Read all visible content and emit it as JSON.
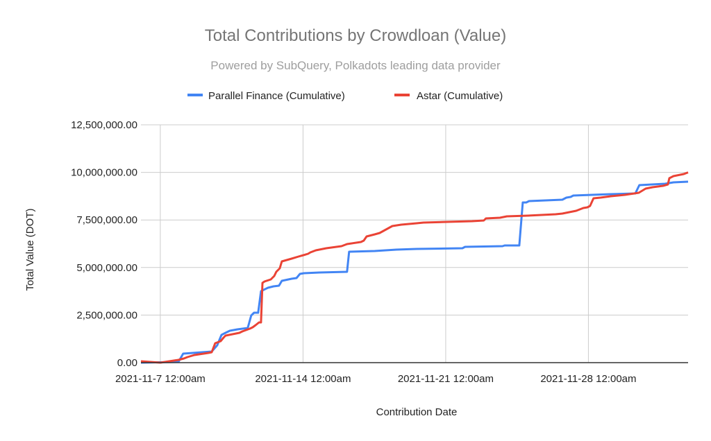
{
  "chart_data": {
    "type": "line",
    "title": "Total Contributions by Crowdloan (Value)",
    "subtitle": "Powered by SubQuery, Polkadots leading data provider",
    "xlabel": "Contribution Date",
    "ylabel": "Total Value (DOT)",
    "x_unit": "days since 2021-11-7 12:00am",
    "xlim": [
      -0.95,
      25.89
    ],
    "ylim": [
      0,
      12500000
    ],
    "grid": true,
    "legend_position": "top",
    "y_ticks": [
      {
        "value": 0,
        "label": "0.00"
      },
      {
        "value": 2500000,
        "label": "2,500,000.00"
      },
      {
        "value": 5000000,
        "label": "5,000,000.00"
      },
      {
        "value": 7500000,
        "label": "7,500,000.00"
      },
      {
        "value": 10000000,
        "label": "10,000,000.00"
      },
      {
        "value": 12500000,
        "label": "12,500,000.00"
      }
    ],
    "x_ticks": [
      {
        "value": 0,
        "label": "2021-11-7 12:00am"
      },
      {
        "value": 7,
        "label": "2021-11-14 12:00am"
      },
      {
        "value": 14,
        "label": "2021-11-21 12:00am"
      },
      {
        "value": 21,
        "label": "2021-11-28 12:00am"
      }
    ],
    "series": [
      {
        "name": "Parallel Finance (Cumulative)",
        "color": "#4285f4",
        "points": [
          [
            -0.95,
            0
          ],
          [
            0.89,
            36000
          ],
          [
            1.12,
            474000
          ],
          [
            2.52,
            583000
          ],
          [
            2.79,
            911000
          ],
          [
            3.0,
            1458000
          ],
          [
            3.2,
            1567000
          ],
          [
            3.41,
            1676000
          ],
          [
            3.78,
            1749000
          ],
          [
            4.29,
            1822000
          ],
          [
            4.46,
            2478000
          ],
          [
            4.6,
            2624000
          ],
          [
            4.8,
            2624000
          ],
          [
            4.94,
            3753000
          ],
          [
            5.07,
            3826000
          ],
          [
            5.28,
            3935000
          ],
          [
            5.55,
            4009000
          ],
          [
            5.82,
            4045000
          ],
          [
            5.96,
            4300000
          ],
          [
            6.44,
            4409000
          ],
          [
            6.68,
            4446000
          ],
          [
            6.85,
            4665000
          ],
          [
            7.05,
            4701000
          ],
          [
            7.8,
            4737000
          ],
          [
            9.16,
            4774000
          ],
          [
            9.26,
            5831000
          ],
          [
            10.52,
            5867000
          ],
          [
            11.58,
            5940000
          ],
          [
            12.57,
            5977000
          ],
          [
            14.82,
            6013000
          ],
          [
            14.95,
            6086000
          ],
          [
            16.79,
            6122000
          ],
          [
            16.89,
            6159000
          ],
          [
            17.61,
            6159000
          ],
          [
            17.78,
            8418000
          ],
          [
            17.95,
            8418000
          ],
          [
            18.09,
            8491000
          ],
          [
            19.72,
            8564000
          ],
          [
            19.92,
            8673000
          ],
          [
            20.13,
            8710000
          ],
          [
            20.26,
            8783000
          ],
          [
            22.1,
            8856000
          ],
          [
            23.3,
            8892000
          ],
          [
            23.5,
            9330000
          ],
          [
            24.76,
            9403000
          ],
          [
            25.17,
            9476000
          ],
          [
            25.89,
            9512000
          ]
        ]
      },
      {
        "name": "Astar (Cumulative)",
        "color": "#ea4335",
        "points": [
          [
            -0.95,
            73000
          ],
          [
            0,
            0
          ],
          [
            0.89,
            146000
          ],
          [
            1.16,
            219000
          ],
          [
            1.33,
            292000
          ],
          [
            1.67,
            401000
          ],
          [
            2.35,
            510000
          ],
          [
            2.52,
            547000
          ],
          [
            2.69,
            1020000
          ],
          [
            2.96,
            1130000
          ],
          [
            3.1,
            1312000
          ],
          [
            3.2,
            1421000
          ],
          [
            3.88,
            1567000
          ],
          [
            4.02,
            1640000
          ],
          [
            4.39,
            1786000
          ],
          [
            4.53,
            1859000
          ],
          [
            4.67,
            1968000
          ],
          [
            4.84,
            2114000
          ],
          [
            4.94,
            2114000
          ],
          [
            5.01,
            4191000
          ],
          [
            5.11,
            4264000
          ],
          [
            5.42,
            4373000
          ],
          [
            5.59,
            4555000
          ],
          [
            5.69,
            4774000
          ],
          [
            5.86,
            4956000
          ],
          [
            5.96,
            5321000
          ],
          [
            6.44,
            5466000
          ],
          [
            6.78,
            5576000
          ],
          [
            7.02,
            5649000
          ],
          [
            7.25,
            5722000
          ],
          [
            7.36,
            5795000
          ],
          [
            7.63,
            5904000
          ],
          [
            8.14,
            6013000
          ],
          [
            8.89,
            6122000
          ],
          [
            9.16,
            6232000
          ],
          [
            9.84,
            6341000
          ],
          [
            9.98,
            6414000
          ],
          [
            10.12,
            6632000
          ],
          [
            10.52,
            6742000
          ],
          [
            10.76,
            6815000
          ],
          [
            11.07,
            6997000
          ],
          [
            11.38,
            7179000
          ],
          [
            11.82,
            7252000
          ],
          [
            12.57,
            7325000
          ],
          [
            12.91,
            7362000
          ],
          [
            15.29,
            7434000
          ],
          [
            15.87,
            7471000
          ],
          [
            15.97,
            7580000
          ],
          [
            16.66,
            7617000
          ],
          [
            17.0,
            7690000
          ],
          [
            18.02,
            7726000
          ],
          [
            19.39,
            7799000
          ],
          [
            19.72,
            7836000
          ],
          [
            20.4,
            7981000
          ],
          [
            20.75,
            8127000
          ],
          [
            20.95,
            8164000
          ],
          [
            21.08,
            8236000
          ],
          [
            21.25,
            8637000
          ],
          [
            21.59,
            8673000
          ],
          [
            22.1,
            8746000
          ],
          [
            22.79,
            8819000
          ],
          [
            23.47,
            8928000
          ],
          [
            23.81,
            9147000
          ],
          [
            24.15,
            9220000
          ],
          [
            24.66,
            9293000
          ],
          [
            24.9,
            9366000
          ],
          [
            24.97,
            9694000
          ],
          [
            25.17,
            9803000
          ],
          [
            25.68,
            9913000
          ],
          [
            25.89,
            10000000
          ]
        ]
      }
    ]
  }
}
